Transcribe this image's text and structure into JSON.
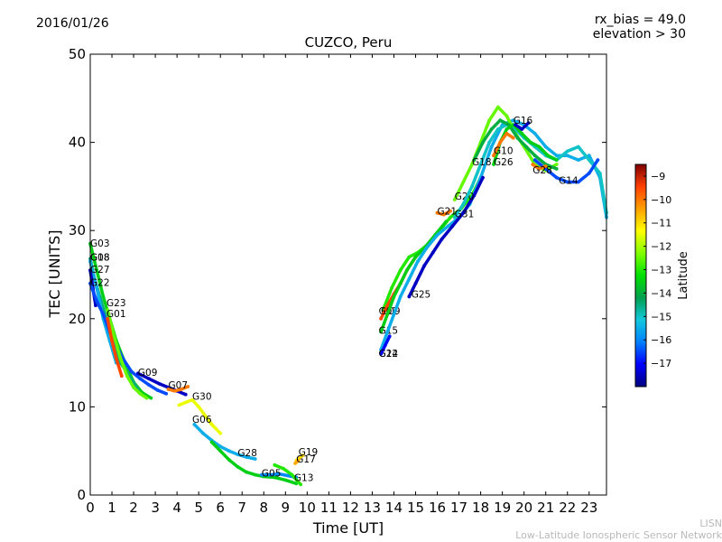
{
  "header": {
    "date": "2016/01/26",
    "rx_bias": "rx_bias = 49.0",
    "elevation": "elevation > 30"
  },
  "credit": {
    "line1": "LISN",
    "line2": "Low-Latitude Ionospheric Sensor Network"
  },
  "chart_data": {
    "type": "scatter",
    "title": "CUZCO, Peru",
    "xlabel": "Time [UT]",
    "ylabel": "TEC [UNITS]",
    "xlim": [
      0,
      23.8
    ],
    "ylim": [
      0,
      50
    ],
    "xticks": [
      0,
      1,
      2,
      3,
      4,
      5,
      6,
      7,
      8,
      9,
      10,
      11,
      12,
      13,
      14,
      15,
      16,
      17,
      18,
      19,
      20,
      21,
      22,
      23
    ],
    "yticks": [
      0,
      10,
      20,
      30,
      40,
      50
    ],
    "colorbar": {
      "label": "Latitude",
      "range": [
        -18,
        -8.5
      ],
      "ticks": [
        -9,
        -10,
        -11,
        -12,
        -13,
        -14,
        -15,
        -16,
        -17
      ],
      "colors": [
        "#00007f",
        "#0000ff",
        "#0080ff",
        "#14c8dc",
        "#00a050",
        "#00e000",
        "#80ff00",
        "#ffff00",
        "#ffa000",
        "#ff4000",
        "#7f0000"
      ]
    },
    "series": [
      {
        "name": "G03",
        "lat": -13.5,
        "label_at": [
          0.0,
          28.2
        ],
        "x": [
          0.0,
          0.3,
          0.6,
          0.9,
          1.2,
          1.6,
          2.0,
          2.4,
          2.8
        ],
        "y": [
          28.5,
          25.5,
          22.5,
          20.0,
          17.5,
          15.0,
          12.8,
          11.6,
          11.0
        ]
      },
      {
        "name": "G18",
        "lat": -14.5,
        "label_at": [
          0.0,
          26.6
        ],
        "x": [
          0.0,
          0.2,
          0.5,
          0.8,
          1.1,
          1.4,
          1.8,
          2.2
        ],
        "y": [
          26.8,
          24.5,
          22.0,
          19.5,
          17.0,
          15.0,
          13.5,
          12.0
        ]
      },
      {
        "name": "G08",
        "lat": -15.5,
        "label_at": [
          0.0,
          26.6
        ],
        "x": [
          0.0,
          0.3,
          0.6,
          0.9,
          1.2
        ],
        "y": [
          26.5,
          23.5,
          20.0,
          17.5,
          15.0
        ]
      },
      {
        "name": "G27",
        "lat": -17.5,
        "label_at": [
          0.0,
          25.2
        ],
        "x": [
          0.0,
          0.12,
          0.25
        ],
        "y": [
          25.5,
          23.5,
          21.5
        ]
      },
      {
        "name": "G22",
        "lat": -16.5,
        "label_at": [
          0.0,
          23.7
        ],
        "x": [
          0.0,
          0.3,
          0.6,
          0.9,
          1.2,
          1.5,
          1.9,
          2.3,
          2.7,
          3.1,
          3.5
        ],
        "y": [
          24.0,
          22.0,
          20.5,
          18.5,
          17.0,
          15.5,
          14.0,
          13.2,
          12.5,
          11.9,
          11.5
        ]
      },
      {
        "name": "G23",
        "lat": -12.5,
        "label_at": [
          0.75,
          21.4
        ],
        "x": [
          0.8,
          1.1,
          1.4,
          1.7,
          2.0,
          2.3,
          2.6
        ],
        "y": [
          21.0,
          18.0,
          15.5,
          13.5,
          12.2,
          11.5,
          11.0
        ]
      },
      {
        "name": "G01",
        "lat": -9.5,
        "label_at": [
          0.75,
          20.2
        ],
        "x": [
          0.8,
          1.0,
          1.2,
          1.45
        ],
        "y": [
          20.0,
          17.5,
          15.5,
          13.5
        ]
      },
      {
        "name": "G09",
        "lat": -17.5,
        "label_at": [
          2.2,
          13.5
        ],
        "x": [
          2.2,
          2.7,
          3.2,
          3.6,
          4.0,
          4.4
        ],
        "y": [
          13.8,
          13.2,
          12.6,
          12.2,
          11.8,
          11.4
        ]
      },
      {
        "name": "G07",
        "lat": -10.0,
        "label_at": [
          3.6,
          12.1
        ],
        "x": [
          3.6,
          3.9,
          4.2,
          4.5
        ],
        "y": [
          12.0,
          11.8,
          12.0,
          12.3
        ]
      },
      {
        "name": "G30",
        "lat": -11.5,
        "label_at": [
          4.7,
          10.8
        ],
        "x": [
          4.1,
          4.4,
          4.7,
          5.0,
          5.3,
          5.6,
          6.0
        ],
        "y": [
          10.2,
          10.5,
          10.8,
          10.0,
          9.0,
          8.0,
          7.0
        ]
      },
      {
        "name": "G06",
        "lat": -15.5,
        "label_at": [
          4.7,
          8.2
        ],
        "x": [
          4.8,
          5.2,
          5.6,
          6.0,
          6.4,
          6.8,
          7.2,
          7.6
        ],
        "y": [
          8.0,
          7.0,
          6.2,
          5.5,
          5.0,
          4.6,
          4.3,
          4.1
        ]
      },
      {
        "name": "G28",
        "lat": -13.5,
        "label_at": [
          6.8,
          4.4
        ],
        "x": [
          5.6,
          6.0,
          6.4,
          6.8,
          7.2,
          7.6,
          8.0,
          8.5,
          9.0,
          9.5
        ],
        "y": [
          6.0,
          5.0,
          4.0,
          3.2,
          2.6,
          2.3,
          2.1,
          2.0,
          1.7,
          1.3
        ]
      },
      {
        "name": "G05",
        "lat": -16.0,
        "label_at": [
          7.9,
          2.1
        ],
        "x": [
          7.9,
          8.3,
          8.7,
          9.1,
          9.5
        ],
        "y": [
          2.3,
          2.3,
          2.4,
          2.2,
          2.0
        ]
      },
      {
        "name": "G19",
        "lat": -11.0,
        "label_at": [
          9.6,
          4.5
        ],
        "x": [
          9.5,
          9.65,
          9.8
        ],
        "y": [
          3.9,
          4.2,
          4.5
        ]
      },
      {
        "name": "G17",
        "lat": -10.5,
        "label_at": [
          9.5,
          3.7
        ],
        "x": [
          9.45,
          9.6
        ],
        "y": [
          3.6,
          3.9
        ]
      },
      {
        "name": "G13",
        "lat": -13.0,
        "label_at": [
          9.4,
          1.6
        ],
        "x": [
          8.5,
          8.9,
          9.3,
          9.7
        ],
        "y": [
          3.4,
          3.0,
          2.3,
          1.2
        ]
      },
      {
        "name": "G09",
        "lat": -13.0,
        "label_at": [
          13.4,
          20.5
        ],
        "x": [
          13.5,
          13.9,
          14.3,
          14.7,
          15.1,
          15.6,
          16.1,
          16.6,
          17.1,
          17.6,
          18.0
        ],
        "y": [
          21.0,
          23.5,
          25.5,
          27.0,
          27.5,
          28.5,
          30.0,
          31.5,
          32.5,
          34.0,
          36.0
        ]
      },
      {
        "name": "G02",
        "lat": -9.5,
        "label_at": [
          13.3,
          20.5
        ],
        "x": [
          13.4,
          13.7,
          14.0,
          14.3,
          14.6,
          15.0
        ],
        "y": [
          20.0,
          21.5,
          22.8,
          24.0,
          25.5,
          27.0
        ]
      },
      {
        "name": "G15",
        "lat": -13.5,
        "label_at": [
          13.3,
          18.3
        ],
        "x": [
          13.4,
          13.7,
          14.0,
          14.3,
          14.6,
          15.0,
          15.4,
          15.9,
          16.4
        ],
        "y": [
          18.5,
          20.5,
          22.5,
          24.0,
          25.5,
          27.0,
          28.0,
          29.5,
          31.0
        ]
      },
      {
        "name": "G24",
        "lat": -15.5,
        "label_at": [
          13.3,
          15.7
        ],
        "x": [
          13.4,
          13.7,
          14.0,
          14.3,
          14.7,
          15.1,
          15.5,
          16.0,
          16.5,
          17.0,
          17.5,
          18.0,
          18.5,
          19.0,
          19.5,
          20.0,
          20.5,
          21.0,
          21.5,
          22.0,
          22.5,
          23.0,
          23.5,
          23.8
        ],
        "y": [
          16.5,
          18.5,
          20.5,
          22.5,
          24.5,
          26.5,
          28.0,
          29.5,
          30.5,
          31.5,
          33.0,
          36.0,
          39.5,
          42.0,
          42.5,
          42.0,
          41.0,
          39.5,
          38.5,
          38.5,
          38.0,
          38.5,
          36.0,
          31.5
        ]
      },
      {
        "name": "G12",
        "lat": -17.0,
        "label_at": [
          13.3,
          15.7
        ],
        "x": [
          13.4,
          13.6,
          13.8
        ],
        "y": [
          16.0,
          17.0,
          18.0
        ]
      },
      {
        "name": "G25",
        "lat": -17.5,
        "label_at": [
          14.8,
          22.4
        ],
        "x": [
          14.7,
          15.0,
          15.4,
          15.8,
          16.2,
          16.7,
          17.2,
          17.7,
          18.1
        ],
        "y": [
          22.5,
          24.0,
          26.0,
          27.5,
          29.0,
          30.5,
          32.0,
          34.0,
          36.0
        ]
      },
      {
        "name": "G21",
        "lat": -10.0,
        "label_at": [
          16.0,
          31.8
        ],
        "x": [
          16.0,
          16.3,
          16.6
        ],
        "y": [
          32.0,
          31.8,
          32.2
        ]
      },
      {
        "name": "G20",
        "lat": -12.5,
        "label_at": [
          16.8,
          33.5
        ],
        "x": [
          16.8,
          17.2,
          17.6,
          18.0,
          18.4,
          18.8,
          19.2,
          19.6,
          20.0,
          20.5,
          21.0,
          21.5
        ],
        "y": [
          33.5,
          35.5,
          37.5,
          40.0,
          42.5,
          44.0,
          43.0,
          41.0,
          39.5,
          37.5,
          36.8,
          37.5
        ]
      },
      {
        "name": "G31",
        "lat": -15.0,
        "label_at": [
          16.8,
          31.5
        ],
        "x": [
          16.8,
          17.2,
          17.6,
          18.0,
          18.4,
          18.8,
          19.2,
          19.6,
          20.0,
          20.5,
          21.0,
          21.5,
          22.0,
          22.5,
          23.0,
          23.5,
          23.8
        ],
        "y": [
          31.5,
          33.0,
          35.0,
          37.5,
          40.0,
          41.5,
          42.0,
          41.5,
          40.5,
          39.5,
          38.5,
          38.0,
          39.0,
          39.5,
          38.0,
          36.5,
          32.0
        ]
      },
      {
        "name": "G18",
        "lat": -14.0,
        "label_at": [
          17.6,
          37.4
        ],
        "x": [
          17.7,
          18.1,
          18.5,
          18.9,
          19.3,
          19.7,
          20.1,
          20.5,
          21.0,
          21.5
        ],
        "y": [
          38.0,
          40.0,
          41.5,
          42.5,
          42.0,
          40.5,
          39.5,
          38.5,
          37.5,
          37.0
        ]
      },
      {
        "name": "G26",
        "lat": -13.5,
        "label_at": [
          18.6,
          37.4
        ],
        "x": [
          18.6,
          18.9,
          19.2,
          19.5,
          19.9,
          20.3,
          20.7,
          21.1,
          21.5
        ],
        "y": [
          37.5,
          40.0,
          41.5,
          42.0,
          41.0,
          40.0,
          39.5,
          38.5,
          38.0
        ]
      },
      {
        "name": "G10",
        "lat": -10.0,
        "label_at": [
          18.6,
          38.7
        ],
        "x": [
          18.6,
          18.9,
          19.2,
          19.5
        ],
        "y": [
          38.5,
          40.0,
          41.0,
          40.5
        ]
      },
      {
        "name": "G16",
        "lat": -17.5,
        "label_at": [
          19.5,
          42.1
        ],
        "x": [
          19.6,
          19.9,
          20.2
        ],
        "y": [
          42.0,
          41.5,
          42.2
        ]
      },
      {
        "name": "G14",
        "lat": -16.5,
        "label_at": [
          21.6,
          35.3
        ],
        "x": [
          20.5,
          21.0,
          21.5,
          22.0,
          22.5,
          23.0,
          23.4
        ],
        "y": [
          38.0,
          37.0,
          36.0,
          35.5,
          35.5,
          36.5,
          38.0
        ]
      },
      {
        "name": "G28",
        "lat": -10.0,
        "label_at": [
          20.4,
          36.5
        ],
        "x": [
          20.4,
          20.7,
          21.0
        ],
        "y": [
          37.5,
          37.0,
          37.3
        ]
      }
    ]
  }
}
